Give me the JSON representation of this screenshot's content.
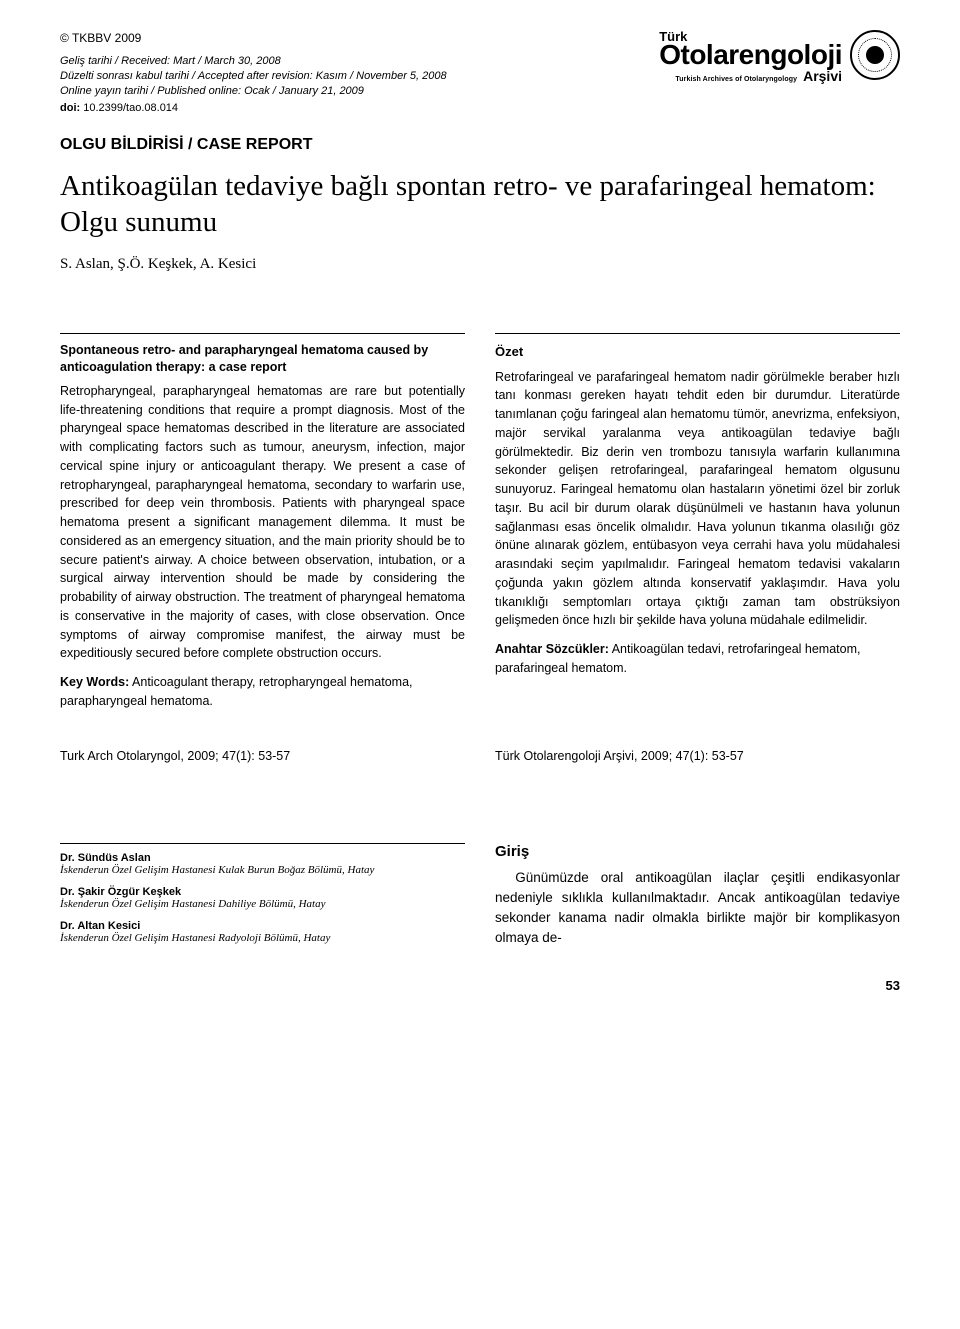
{
  "header": {
    "copyright": "© TKBBV 2009",
    "received_label": "Geliş tarihi / Received:",
    "received_value": "Mart / March 30, 2008",
    "accepted_label": "Düzelti sonrası kabul tarihi / Accepted after revision:",
    "accepted_value": "Kasım / November 5, 2008",
    "published_label": "Online yayın tarihi / Published online:",
    "published_value": "Ocak / January 21, 2009",
    "doi_label": "doi:",
    "doi_value": "10.2399/tao.08.014",
    "journal_small": "Türk",
    "journal_big": "Otolarengoloji",
    "journal_sub": "Turkish Archives of Otolaryngology",
    "journal_arsivi": "Arşivi"
  },
  "report_type": "OLGU BİLDİRİSİ / CASE REPORT",
  "title_main": "Antikoagülan tedaviye bağlı spontan retro- ve parafaringeal hematom: Olgu sunumu",
  "authors": "S. Aslan, Ş.Ö. Keşkek, A. Kesici",
  "abstract_en": {
    "title": "Spontaneous retro- and parapharyngeal hematoma caused by anticoagulation therapy: a case report",
    "body": "Retropharyngeal, parapharyngeal hematomas are rare but potentially life-threatening conditions that require a prompt diagnosis. Most of the pharyngeal space hematomas described in the literature are associated with complicating factors such as tumour, aneurysm, infection, major cervical spine injury or anticoagulant therapy. We present a case of retropharyngeal, parapharyngeal hematoma, secondary to warfarin use, prescribed for deep vein thrombosis. Patients with pharyngeal space hematoma present a significant management dilemma. It must be considered as an emergency situation, and the main priority should be to secure patient's airway. A choice between observation, intubation, or a surgical airway intervention should be made by considering the probability of airway obstruction. The treatment of pharyngeal hematoma is conservative in the majority of cases, with close observation. Once symptoms of airway compromise manifest, the airway must be expeditiously secured before complete obstruction occurs.",
    "keywords_label": "Key Words:",
    "keywords": "Anticoagulant therapy, retropharyngeal hematoma, parapharyngeal hematoma."
  },
  "abstract_tr": {
    "title": "Özet",
    "body": "Retrofaringeal ve parafaringeal hematom nadir görülmekle beraber hızlı tanı konması gereken hayatı tehdit eden bir durumdur. Literatürde tanımlanan çoğu faringeal alan hematomu tümör, anevrizma, enfeksiyon, majör servikal yaralanma veya antikoagülan tedaviye bağlı görülmektedir. Biz derin ven trombozu tanısıyla warfarin kullanımına sekonder gelişen retrofaringeal, parafaringeal hematom olgusunu sunuyoruz. Faringeal hematomu olan hastaların yönetimi özel bir zorluk taşır. Bu acil bir durum olarak düşünülmeli ve hastanın hava yolunun sağlanması esas öncelik olmalıdır. Hava yolunun tıkanma olasılığı göz önüne alınarak gözlem, entübasyon veya cerrahi hava yolu müdahalesi arasındaki seçim yapılmalıdır. Faringeal hematom tedavisi vakaların çoğunda yakın gözlem altında konservatif yaklaşımdır. Hava yolu tıkanıklığı semptomları ortaya çıktığı zaman tam obstrüksiyon gelişmeden önce hızlı bir şekilde hava yoluna müdahale edilmelidir.",
    "keywords_label": "Anahtar Sözcükler:",
    "keywords": "Antikoagülan tedavi, retrofaringeal hematom, parafaringeal hematom."
  },
  "citation_en": "Turk Arch Otolaryngol, 2009; 47(1): 53-57",
  "citation_tr": "Türk Otolarengoloji Arşivi, 2009; 47(1): 53-57",
  "affiliations": [
    {
      "name": "Dr. Sündüs Aslan",
      "inst": "İskenderun Özel Gelişim Hastanesi Kulak Burun Boğaz Bölümü, Hatay"
    },
    {
      "name": "Dr. Şakir Özgür Keşkek",
      "inst": "İskenderun Özel Gelişim Hastanesi Dahiliye Bölümü, Hatay"
    },
    {
      "name": "Dr. Altan Kesici",
      "inst": "İskenderun Özel Gelişim Hastanesi Radyoloji Bölümü, Hatay"
    }
  ],
  "intro": {
    "title": "Giriş",
    "body": "Günümüzde oral antikoagülan ilaçlar çeşitli endikasyonlar nedeniyle sıklıkla kullanılmaktadır. Ancak antikoagülan tedaviye sekonder kanama nadir olmakla birlikte majör bir komplikasyon olmaya de-"
  },
  "page_num": "53"
}
